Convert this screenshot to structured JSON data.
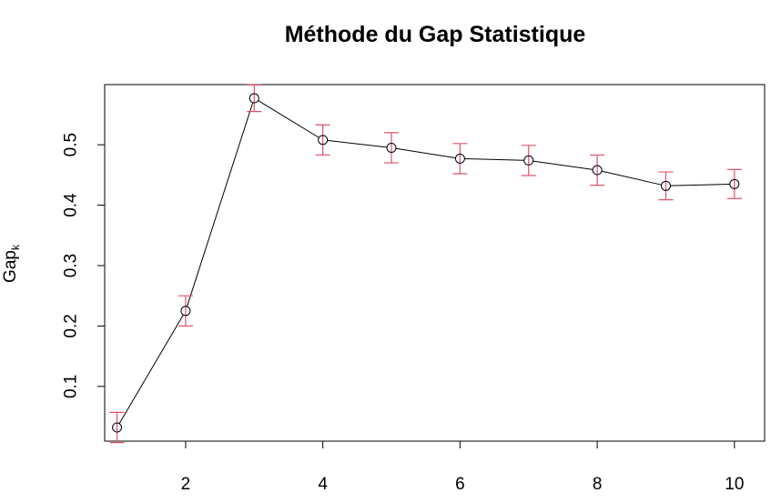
{
  "chart_data": {
    "type": "line",
    "title": "Méthode du Gap Statistique",
    "xlabel": "",
    "ylabel": "Gap",
    "ylabel_subscript": "k",
    "x": [
      1,
      2,
      3,
      4,
      5,
      6,
      7,
      8,
      9,
      10
    ],
    "series": [
      {
        "values": [
          0.032,
          0.225,
          0.577,
          0.508,
          0.495,
          0.477,
          0.474,
          0.458,
          0.432,
          0.435
        ],
        "error": [
          0.025,
          0.025,
          0.022,
          0.025,
          0.025,
          0.025,
          0.025,
          0.025,
          0.023,
          0.024
        ],
        "line_color": "#000000",
        "marker": "open-circle",
        "error_color": "#DF536B"
      }
    ],
    "xlim": [
      0.82,
      10.44
    ],
    "ylim": [
      0.0094,
      0.5996
    ],
    "xticks": [
      2,
      4,
      6,
      8,
      10
    ],
    "xtick_labels": [
      "2",
      "4",
      "6",
      "8",
      "10"
    ],
    "yticks": [
      0.1,
      0.2,
      0.3,
      0.4,
      0.5
    ],
    "ytick_labels": [
      "0.1",
      "0.2",
      "0.3",
      "0.4",
      "0.5"
    ],
    "grid": false,
    "legend": "none"
  }
}
